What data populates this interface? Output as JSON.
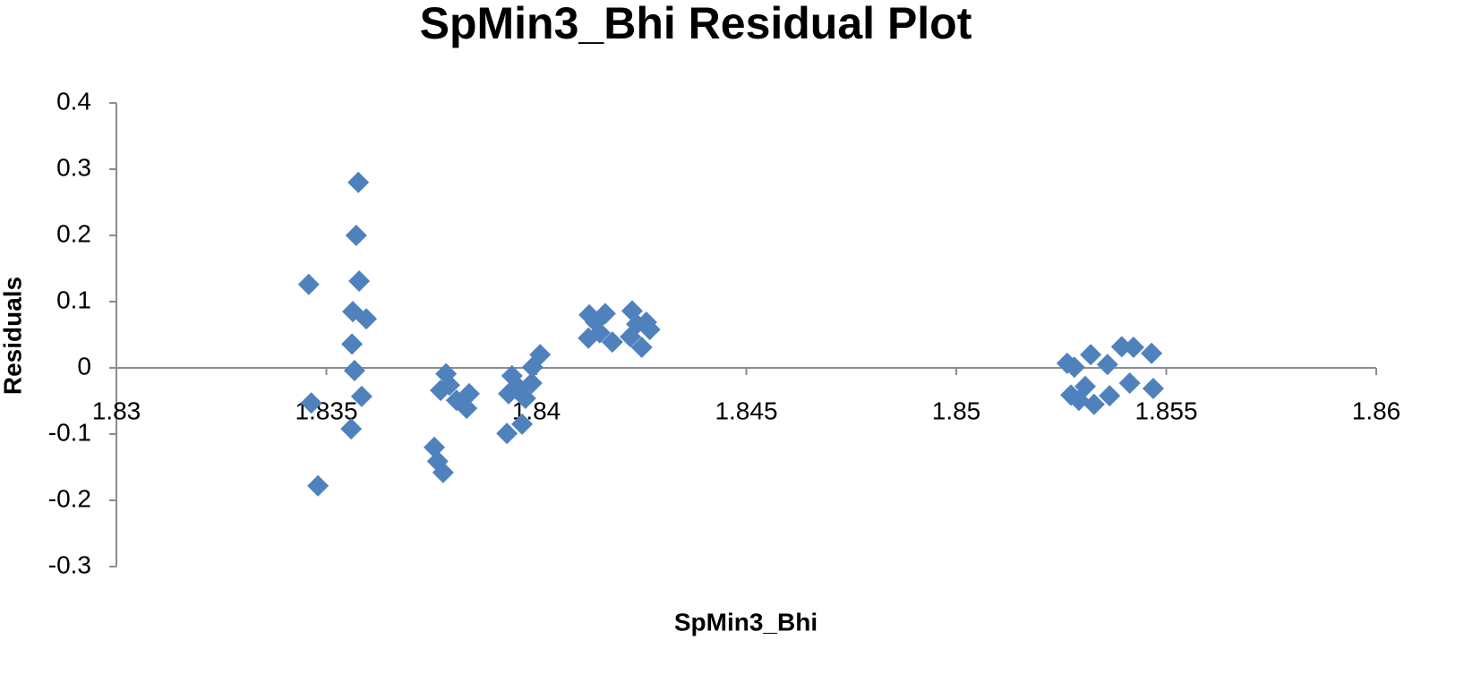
{
  "chart_data": {
    "type": "scatter",
    "title": "SpMin3_Bhi  Residual Plot",
    "x_label": "SpMin3_Bhi",
    "y_label": "Residuals",
    "series": [
      {
        "name": "Residuals",
        "color": "#4f81bd",
        "x": [
          1.83458,
          1.83464,
          1.8348,
          1.83576,
          1.83571,
          1.83578,
          1.83563,
          1.83595,
          1.83561,
          1.83567,
          1.83584,
          1.83559,
          1.83757,
          1.83765,
          1.83778,
          1.83785,
          1.83772,
          1.83793,
          1.8381,
          1.83834,
          1.8384,
          1.8393,
          1.83966,
          1.83942,
          1.83934,
          1.83955,
          1.83974,
          1.83989,
          1.83991,
          1.84009,
          1.84126,
          1.84141,
          1.84164,
          1.84124,
          1.84151,
          1.84181,
          1.84228,
          1.84239,
          1.84224,
          1.84262,
          1.8427,
          1.84251,
          1.85264,
          1.85281,
          1.8532,
          1.8536,
          1.85273,
          1.85292,
          1.85307,
          1.85328,
          1.85365,
          1.85394,
          1.85422,
          1.85465,
          1.85413,
          1.85469
        ],
        "values": [
          0.126,
          -0.053,
          -0.178,
          0.28,
          0.2,
          0.131,
          0.085,
          0.074,
          0.036,
          -0.004,
          -0.043,
          -0.092,
          -0.12,
          -0.141,
          -0.158,
          -0.009,
          -0.034,
          -0.026,
          -0.049,
          -0.061,
          -0.039,
          -0.099,
          -0.085,
          -0.012,
          -0.039,
          -0.028,
          -0.046,
          -0.023,
          0.001,
          0.02,
          0.08,
          0.069,
          0.082,
          0.045,
          0.053,
          0.039,
          0.086,
          0.066,
          0.047,
          0.069,
          0.058,
          0.031,
          0.007,
          0.001,
          0.02,
          0.005,
          -0.041,
          -0.049,
          -0.028,
          -0.055,
          -0.042,
          0.032,
          0.031,
          0.022,
          -0.023,
          -0.031
        ]
      }
    ],
    "xlim": [
      1.83,
      1.86
    ],
    "xticks": [
      1.83,
      1.835,
      1.84,
      1.845,
      1.85,
      1.855,
      1.86
    ],
    "ylim": [
      -0.3,
      0.4
    ],
    "yticks": [
      -0.3,
      -0.2,
      -0.1,
      0,
      0.1,
      0.2,
      0.3,
      0.4
    ],
    "grid": false
  }
}
